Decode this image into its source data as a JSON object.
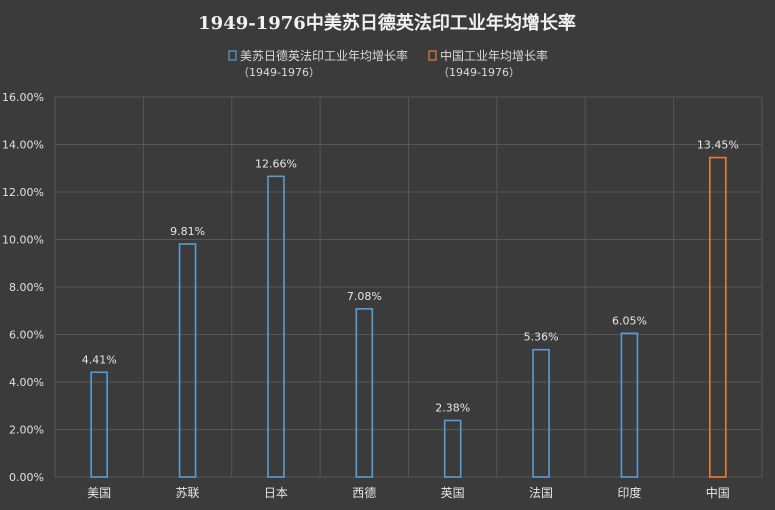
{
  "chart_data": {
    "type": "bar",
    "title": "1949-1976中美苏日德英法印工业年均增长率",
    "categories": [
      "美国",
      "苏联",
      "日本",
      "西德",
      "英国",
      "法国",
      "印度",
      "中国"
    ],
    "series": [
      {
        "name": "美苏日德英法印工业年均增长率",
        "subname": "（1949-1976）",
        "color": "#5b9bd5",
        "values": [
          4.41,
          9.81,
          12.66,
          7.08,
          2.38,
          5.36,
          6.05,
          null
        ],
        "labels": [
          "4.41%",
          "9.81%",
          "12.66%",
          "7.08%",
          "2.38%",
          "5.36%",
          "6.05%",
          ""
        ]
      },
      {
        "name": "中国工业年均增长率",
        "subname": "（1949-1976）",
        "color": "#ed7d31",
        "values": [
          null,
          null,
          null,
          null,
          null,
          null,
          null,
          13.45
        ],
        "labels": [
          "",
          "",
          "",
          "",
          "",
          "",
          "",
          "13.45%"
        ]
      }
    ],
    "y_ticks": [
      "0.00%",
      "2.00%",
      "4.00%",
      "6.00%",
      "8.00%",
      "10.00%",
      "12.00%",
      "14.00%",
      "16.00%"
    ],
    "ylim": [
      0,
      16
    ],
    "y_step": 2,
    "grid": true,
    "legend_position": "top-center"
  }
}
